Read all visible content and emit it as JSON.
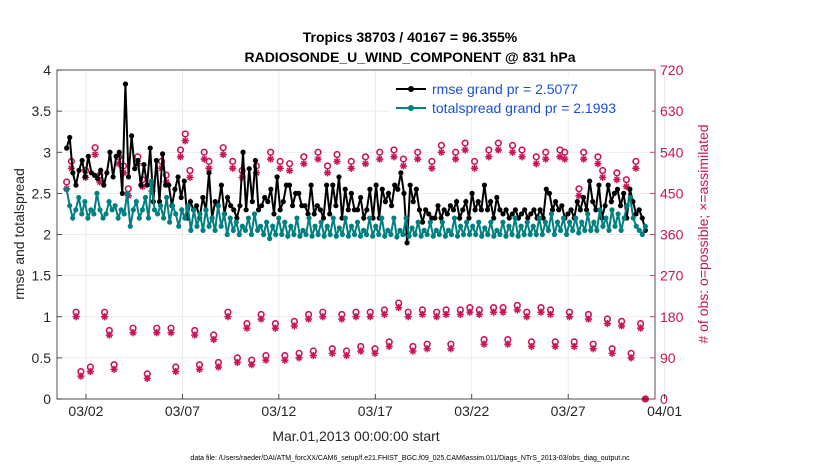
{
  "chart_data": {
    "type": "line",
    "title_line1": "Tropics 38703 / 40167 = 96.355%",
    "title_line2": "RADIOSONDE_U_WIND_COMPONENT @ 831 hPa",
    "xlabel": "Mar.01,2013 00:00:00 start",
    "ylabel_left": "rmse and totalspread",
    "ylabel_right": "# of obs: o=possible; ×=assimilated",
    "footer": "data file: /Users/raeder/DAI/ATM_forcXX/CAM6_setup/f.e21.FHIST_BGC.f09_025.CAM6assim.011/Diags_NTrS_2013-03/obs_diag_output.nc",
    "xlim": [
      0.5,
      31.5
    ],
    "ylim_left": [
      0,
      4
    ],
    "ylim_right": [
      0,
      720
    ],
    "x_ticks": [
      {
        "x": 2,
        "label": "03/02"
      },
      {
        "x": 7,
        "label": "03/07"
      },
      {
        "x": 12,
        "label": "03/12"
      },
      {
        "x": 17,
        "label": "03/17"
      },
      {
        "x": 22,
        "label": "03/22"
      },
      {
        "x": 27,
        "label": "03/27"
      },
      {
        "x": 32,
        "label": "04/01"
      }
    ],
    "y_ticks_left": [
      "0",
      "0.5",
      "1",
      "1.5",
      "2",
      "2.5",
      "3",
      "3.5",
      "4"
    ],
    "y_ticks_right": [
      "0",
      "90",
      "180",
      "270",
      "360",
      "450",
      "540",
      "630",
      "720"
    ],
    "legend": [
      {
        "label": "rmse grand pr = 2.5077",
        "color": "#000000"
      },
      {
        "label": "totalspread grand pr = 2.1993",
        "color": "#008080"
      }
    ],
    "colors": {
      "rmse": "#000000",
      "spread": "#008080",
      "obs": "#c8155a"
    },
    "series": [
      {
        "name": "rmse",
        "axis": "left",
        "values": [
          3.05,
          3.18,
          2.75,
          2.6,
          2.78,
          2.9,
          2.7,
          2.95,
          2.75,
          2.72,
          2.68,
          2.78,
          2.6,
          2.75,
          3.0,
          2.7,
          2.95,
          3.0,
          2.5,
          3.83,
          2.7,
          3.2,
          2.8,
          2.9,
          2.6,
          2.85,
          2.6,
          3.05,
          2.4,
          2.9,
          2.4,
          2.98,
          2.6,
          2.6,
          2.35,
          2.55,
          2.7,
          2.45,
          2.65,
          2.2,
          2.4,
          2.3,
          2.35,
          2.2,
          2.45,
          2.3,
          2.75,
          2.2,
          2.4,
          2.35,
          2.6,
          2.25,
          2.45,
          2.35,
          2.3,
          2.2,
          2.35,
          3.0,
          2.3,
          2.8,
          2.4,
          2.9,
          2.3,
          2.35,
          2.45,
          2.4,
          2.55,
          2.25,
          2.7,
          2.3,
          2.4,
          2.6,
          2.6,
          2.35,
          2.5,
          2.5,
          2.35,
          2.35,
          2.25,
          2.6,
          2.25,
          2.35,
          2.3,
          2.2,
          2.6,
          2.25,
          2.6,
          2.35,
          2.7,
          2.2,
          2.55,
          2.3,
          2.5,
          2.3,
          2.3,
          2.45,
          2.2,
          2.3,
          2.55,
          2.2,
          2.6,
          2.2,
          2.55,
          2.4,
          2.5,
          2.35,
          2.6,
          2.55,
          2.75,
          2.5,
          1.9,
          2.6,
          2.4,
          2.55,
          2.3,
          2.15,
          2.3,
          2.25,
          2.2,
          2.2,
          2.35,
          2.2,
          2.3,
          2.25,
          2.35,
          2.3,
          2.4,
          2.2,
          2.3,
          2.4,
          2.2,
          2.5,
          2.3,
          2.4,
          2.3,
          2.6,
          2.3,
          2.4,
          2.2,
          2.45,
          2.3,
          2.25,
          2.3,
          2.2,
          2.25,
          2.3,
          2.2,
          2.25,
          2.3,
          2.2,
          2.25,
          2.3,
          2.2,
          2.3,
          2.2,
          2.55,
          2.5,
          2.3,
          2.4,
          2.3,
          2.35,
          2.2,
          2.25,
          2.3,
          2.2,
          2.4,
          2.3,
          2.45,
          2.3,
          2.65,
          2.4,
          2.3,
          2.6,
          2.2,
          2.35,
          2.6,
          2.4,
          2.5,
          2.55,
          2.35,
          2.5,
          2.2,
          2.55,
          2.4,
          2.25,
          2.3,
          2.2,
          2.05
        ]
      },
      {
        "name": "totalspread",
        "axis": "left",
        "values": [
          2.55,
          2.35,
          2.2,
          2.3,
          2.45,
          2.25,
          2.4,
          2.2,
          2.3,
          2.25,
          2.5,
          2.3,
          2.2,
          2.25,
          2.4,
          2.3,
          2.35,
          2.2,
          2.3,
          2.25,
          2.5,
          2.1,
          2.3,
          2.4,
          2.2,
          2.3,
          2.45,
          2.2,
          2.65,
          2.3,
          2.25,
          2.35,
          2.2,
          2.45,
          2.15,
          2.35,
          2.25,
          2.1,
          2.3,
          2.2,
          2.35,
          2.05,
          2.3,
          2.1,
          2.25,
          2.05,
          2.3,
          2.1,
          2.2,
          2.05,
          2.35,
          2.1,
          2.25,
          2.0,
          2.2,
          2.05,
          2.15,
          2.0,
          2.1,
          2.05,
          2.2,
          2.0,
          2.25,
          2.05,
          2.1,
          2.0,
          2.15,
          1.95,
          2.1,
          2.0,
          2.2,
          2.0,
          2.15,
          1.98,
          2.1,
          2.0,
          2.2,
          1.98,
          2.05,
          2.0,
          2.2,
          1.98,
          2.1,
          2.0,
          2.15,
          1.98,
          2.1,
          2.0,
          2.2,
          1.98,
          2.08,
          2.0,
          2.2,
          1.98,
          2.1,
          2.0,
          2.15,
          1.98,
          2.05,
          2.0,
          2.2,
          1.98,
          2.1,
          2.0,
          2.2,
          1.98,
          2.05,
          2.0,
          2.2,
          1.97,
          2.05,
          2.0,
          2.2,
          1.98,
          2.08,
          2.0,
          2.15,
          1.98,
          2.05,
          2.0,
          2.15,
          1.98,
          2.05,
          2.0,
          2.15,
          1.98,
          2.05,
          2.0,
          2.2,
          1.98,
          2.1,
          2.0,
          2.15,
          2.0,
          2.1,
          2.0,
          2.15,
          1.98,
          2.08,
          2.0,
          2.15,
          1.98,
          2.05,
          2.0,
          2.15,
          1.98,
          2.1,
          2.0,
          2.2,
          1.98,
          2.1,
          2.0,
          2.15,
          2.0,
          2.1,
          2.0,
          2.2,
          2.0,
          2.15,
          2.05,
          2.25,
          2.0,
          2.15,
          2.05,
          2.2,
          2.0,
          2.15,
          2.05,
          2.2,
          2.02,
          2.15,
          2.05,
          2.25,
          2.05,
          2.15,
          2.05,
          2.3,
          2.1,
          2.2,
          2.05,
          2.3,
          2.1,
          2.25,
          2.05,
          2.2,
          2.35,
          2.45,
          2.2,
          2.1,
          2.05,
          2.0,
          2.1
        ]
      },
      {
        "name": "obs_possible",
        "axis": "right",
        "marker": "o",
        "values": [
          475,
          520,
          190,
          60,
          500,
          70,
          550,
          490,
          190,
          150,
          75,
          530,
          510,
          460,
          155,
          530,
          480,
          55,
          470,
          155,
          520,
          490,
          155,
          70,
          545,
          580,
          500,
          150,
          75,
          540,
          520,
          140,
          80,
          550,
          190,
          520,
          90,
          500,
          165,
          85,
          510,
          185,
          95,
          540,
          165,
          520,
          95,
          515,
          170,
          100,
          530,
          185,
          105,
          540,
          190,
          510,
          110,
          535,
          185,
          105,
          520,
          190,
          115,
          530,
          190,
          110,
          540,
          195,
          125,
          545,
          210,
          525,
          190,
          115,
          540,
          195,
          120,
          520,
          190,
          555,
          195,
          120,
          540,
          195,
          560,
          200,
          520,
          195,
          130,
          545,
          200,
          560,
          200,
          130,
          555,
          205,
          545,
          190,
          125,
          530,
          200,
          540,
          195,
          125,
          545,
          540,
          190,
          125,
          460,
          540,
          185,
          120,
          530,
          500,
          175,
          110,
          495,
          170,
          480,
          100,
          520,
          165,
          0
        ]
      },
      {
        "name": "obs_assimilated",
        "axis": "right",
        "marker": "*",
        "values": [
          460,
          505,
          180,
          50,
          485,
          60,
          535,
          475,
          180,
          140,
          65,
          515,
          495,
          445,
          145,
          515,
          465,
          45,
          455,
          145,
          505,
          475,
          145,
          60,
          530,
          565,
          485,
          140,
          65,
          525,
          505,
          130,
          70,
          535,
          180,
          505,
          80,
          485,
          155,
          75,
          495,
          175,
          85,
          525,
          155,
          505,
          85,
          500,
          160,
          90,
          515,
          175,
          95,
          525,
          180,
          495,
          100,
          520,
          175,
          95,
          505,
          180,
          105,
          515,
          180,
          100,
          525,
          185,
          115,
          530,
          200,
          510,
          180,
          105,
          525,
          185,
          110,
          505,
          180,
          540,
          185,
          110,
          525,
          185,
          545,
          190,
          505,
          185,
          120,
          530,
          190,
          545,
          190,
          120,
          540,
          195,
          530,
          180,
          115,
          515,
          190,
          525,
          185,
          115,
          530,
          525,
          180,
          115,
          445,
          525,
          175,
          110,
          515,
          485,
          165,
          100,
          480,
          160,
          465,
          90,
          505,
          155,
          0
        ]
      }
    ]
  }
}
